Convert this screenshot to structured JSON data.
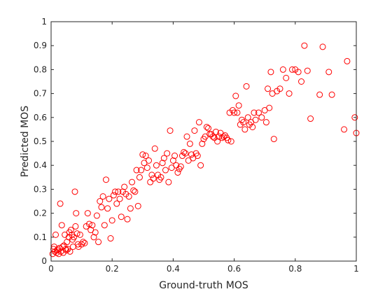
{
  "chart_data": {
    "type": "scatter",
    "title": "",
    "xlabel": "Ground-truth MOS",
    "ylabel": "Predicted MOS",
    "xlim": [
      0,
      1
    ],
    "ylim": [
      0,
      1
    ],
    "x_ticks": [
      "0",
      "0.2",
      "0.4",
      "0.6",
      "0.8",
      "1"
    ],
    "y_ticks": [
      "0",
      "0.1",
      "0.2",
      "0.3",
      "0.4",
      "0.5",
      "0.6",
      "0.7",
      "0.8",
      "0.9",
      "1"
    ],
    "grid": false,
    "marker": "circle-open",
    "marker_color": "#ff0000",
    "points": [
      [
        0.005,
        0.03
      ],
      [
        0.008,
        0.05
      ],
      [
        0.01,
        0.06
      ],
      [
        0.012,
        0.04
      ],
      [
        0.015,
        0.11
      ],
      [
        0.018,
        0.035
      ],
      [
        0.02,
        0.045
      ],
      [
        0.022,
        0.05
      ],
      [
        0.025,
        0.03
      ],
      [
        0.028,
        0.055
      ],
      [
        0.03,
        0.24
      ],
      [
        0.032,
        0.04
      ],
      [
        0.035,
        0.15
      ],
      [
        0.038,
        0.06
      ],
      [
        0.04,
        0.035
      ],
      [
        0.042,
        0.065
      ],
      [
        0.045,
        0.11
      ],
      [
        0.048,
        0.05
      ],
      [
        0.05,
        0.045
      ],
      [
        0.052,
        0.08
      ],
      [
        0.055,
        0.05
      ],
      [
        0.058,
        0.1
      ],
      [
        0.06,
        0.12
      ],
      [
        0.062,
        0.04
      ],
      [
        0.065,
        0.13
      ],
      [
        0.068,
        0.11
      ],
      [
        0.07,
        0.09
      ],
      [
        0.072,
        0.06
      ],
      [
        0.075,
        0.1
      ],
      [
        0.078,
        0.29
      ],
      [
        0.08,
        0.145
      ],
      [
        0.082,
        0.2
      ],
      [
        0.085,
        0.115
      ],
      [
        0.088,
        0.07
      ],
      [
        0.09,
        0.06
      ],
      [
        0.095,
        0.11
      ],
      [
        0.1,
        0.07
      ],
      [
        0.105,
        0.08
      ],
      [
        0.11,
        0.075
      ],
      [
        0.115,
        0.145
      ],
      [
        0.12,
        0.2
      ],
      [
        0.125,
        0.155
      ],
      [
        0.13,
        0.13
      ],
      [
        0.135,
        0.15
      ],
      [
        0.14,
        0.1
      ],
      [
        0.145,
        0.12
      ],
      [
        0.15,
        0.19
      ],
      [
        0.155,
        0.08
      ],
      [
        0.16,
        0.25
      ],
      [
        0.165,
        0.225
      ],
      [
        0.17,
        0.27
      ],
      [
        0.175,
        0.15
      ],
      [
        0.18,
        0.34
      ],
      [
        0.185,
        0.22
      ],
      [
        0.19,
        0.26
      ],
      [
        0.195,
        0.095
      ],
      [
        0.2,
        0.17
      ],
      [
        0.205,
        0.275
      ],
      [
        0.21,
        0.29
      ],
      [
        0.215,
        0.24
      ],
      [
        0.22,
        0.29
      ],
      [
        0.225,
        0.26
      ],
      [
        0.23,
        0.185
      ],
      [
        0.235,
        0.29
      ],
      [
        0.24,
        0.31
      ],
      [
        0.245,
        0.28
      ],
      [
        0.25,
        0.175
      ],
      [
        0.255,
        0.27
      ],
      [
        0.26,
        0.22
      ],
      [
        0.265,
        0.33
      ],
      [
        0.27,
        0.295
      ],
      [
        0.275,
        0.29
      ],
      [
        0.28,
        0.38
      ],
      [
        0.285,
        0.23
      ],
      [
        0.29,
        0.35
      ],
      [
        0.295,
        0.38
      ],
      [
        0.3,
        0.445
      ],
      [
        0.305,
        0.41
      ],
      [
        0.31,
        0.44
      ],
      [
        0.315,
        0.39
      ],
      [
        0.32,
        0.42
      ],
      [
        0.325,
        0.33
      ],
      [
        0.33,
        0.36
      ],
      [
        0.335,
        0.345
      ],
      [
        0.34,
        0.47
      ],
      [
        0.345,
        0.4
      ],
      [
        0.35,
        0.36
      ],
      [
        0.355,
        0.34
      ],
      [
        0.36,
        0.35
      ],
      [
        0.365,
        0.41
      ],
      [
        0.37,
        0.43
      ],
      [
        0.375,
        0.38
      ],
      [
        0.38,
        0.45
      ],
      [
        0.385,
        0.33
      ],
      [
        0.39,
        0.545
      ],
      [
        0.395,
        0.39
      ],
      [
        0.4,
        0.42
      ],
      [
        0.405,
        0.44
      ],
      [
        0.41,
        0.4
      ],
      [
        0.415,
        0.37
      ],
      [
        0.42,
        0.385
      ],
      [
        0.425,
        0.395
      ],
      [
        0.43,
        0.44
      ],
      [
        0.435,
        0.455
      ],
      [
        0.44,
        0.45
      ],
      [
        0.445,
        0.52
      ],
      [
        0.45,
        0.42
      ],
      [
        0.455,
        0.49
      ],
      [
        0.46,
        0.445
      ],
      [
        0.465,
        0.43
      ],
      [
        0.47,
        0.545
      ],
      [
        0.475,
        0.45
      ],
      [
        0.48,
        0.44
      ],
      [
        0.485,
        0.58
      ],
      [
        0.49,
        0.4
      ],
      [
        0.495,
        0.49
      ],
      [
        0.5,
        0.51
      ],
      [
        0.505,
        0.52
      ],
      [
        0.51,
        0.56
      ],
      [
        0.515,
        0.555
      ],
      [
        0.52,
        0.53
      ],
      [
        0.525,
        0.53
      ],
      [
        0.53,
        0.52
      ],
      [
        0.535,
        0.515
      ],
      [
        0.54,
        0.54
      ],
      [
        0.545,
        0.5
      ],
      [
        0.55,
        0.52
      ],
      [
        0.555,
        0.535
      ],
      [
        0.56,
        0.515
      ],
      [
        0.565,
        0.52
      ],
      [
        0.57,
        0.525
      ],
      [
        0.575,
        0.515
      ],
      [
        0.58,
        0.505
      ],
      [
        0.585,
        0.62
      ],
      [
        0.59,
        0.5
      ],
      [
        0.595,
        0.63
      ],
      [
        0.6,
        0.62
      ],
      [
        0.605,
        0.69
      ],
      [
        0.61,
        0.62
      ],
      [
        0.615,
        0.65
      ],
      [
        0.62,
        0.57
      ],
      [
        0.625,
        0.59
      ],
      [
        0.63,
        0.58
      ],
      [
        0.635,
        0.55
      ],
      [
        0.64,
        0.73
      ],
      [
        0.645,
        0.6
      ],
      [
        0.65,
        0.57
      ],
      [
        0.655,
        0.58
      ],
      [
        0.66,
        0.56
      ],
      [
        0.665,
        0.62
      ],
      [
        0.67,
        0.59
      ],
      [
        0.68,
        0.62
      ],
      [
        0.69,
        0.6
      ],
      [
        0.7,
        0.63
      ],
      [
        0.705,
        0.58
      ],
      [
        0.71,
        0.72
      ],
      [
        0.715,
        0.64
      ],
      [
        0.72,
        0.79
      ],
      [
        0.725,
        0.7
      ],
      [
        0.73,
        0.51
      ],
      [
        0.74,
        0.71
      ],
      [
        0.75,
        0.72
      ],
      [
        0.76,
        0.8
      ],
      [
        0.77,
        0.765
      ],
      [
        0.78,
        0.7
      ],
      [
        0.79,
        0.8
      ],
      [
        0.8,
        0.8
      ],
      [
        0.81,
        0.79
      ],
      [
        0.82,
        0.75
      ],
      [
        0.83,
        0.9
      ],
      [
        0.84,
        0.795
      ],
      [
        0.85,
        0.595
      ],
      [
        0.88,
        0.695
      ],
      [
        0.89,
        0.895
      ],
      [
        0.91,
        0.79
      ],
      [
        0.92,
        0.695
      ],
      [
        0.96,
        0.55
      ],
      [
        0.97,
        0.835
      ],
      [
        0.995,
        0.6
      ],
      [
        1.0,
        0.535
      ]
    ]
  }
}
